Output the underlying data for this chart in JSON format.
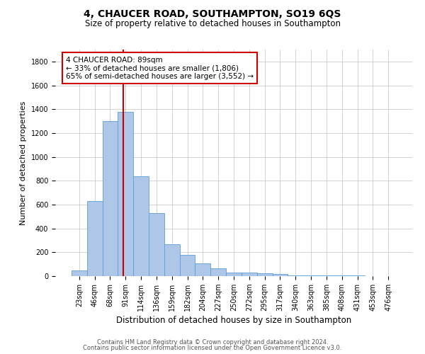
{
  "title": "4, CHAUCER ROAD, SOUTHAMPTON, SO19 6QS",
  "subtitle": "Size of property relative to detached houses in Southampton",
  "xlabel": "Distribution of detached houses by size in Southampton",
  "ylabel": "Number of detached properties",
  "categories": [
    "23sqm",
    "46sqm",
    "68sqm",
    "91sqm",
    "114sqm",
    "136sqm",
    "159sqm",
    "182sqm",
    "204sqm",
    "227sqm",
    "250sqm",
    "272sqm",
    "295sqm",
    "317sqm",
    "340sqm",
    "363sqm",
    "385sqm",
    "408sqm",
    "431sqm",
    "453sqm",
    "476sqm"
  ],
  "values": [
    50,
    630,
    1300,
    1380,
    840,
    530,
    270,
    178,
    105,
    65,
    30,
    30,
    25,
    15,
    8,
    8,
    8,
    5,
    3,
    2,
    2
  ],
  "bar_color": "#aec6e8",
  "bar_edge_color": "#5a9fd4",
  "bar_width": 1.0,
  "ylim": [
    0,
    1900
  ],
  "yticks": [
    0,
    200,
    400,
    600,
    800,
    1000,
    1200,
    1400,
    1600,
    1800
  ],
  "vline_x": 2.85,
  "vline_color": "#cc0000",
  "annotation_text": "4 CHAUCER ROAD: 89sqm\n← 33% of detached houses are smaller (1,806)\n65% of semi-detached houses are larger (3,552) →",
  "annotation_box_color": "#ffffff",
  "annotation_box_edge_color": "#cc0000",
  "footer_line1": "Contains HM Land Registry data © Crown copyright and database right 2024.",
  "footer_line2": "Contains public sector information licensed under the Open Government Licence v3.0.",
  "bg_color": "#ffffff",
  "grid_color": "#cccccc",
  "title_fontsize": 10,
  "subtitle_fontsize": 8.5,
  "ylabel_fontsize": 8,
  "xlabel_fontsize": 8.5,
  "tick_fontsize": 7,
  "annot_fontsize": 7.5,
  "footer_fontsize": 6
}
